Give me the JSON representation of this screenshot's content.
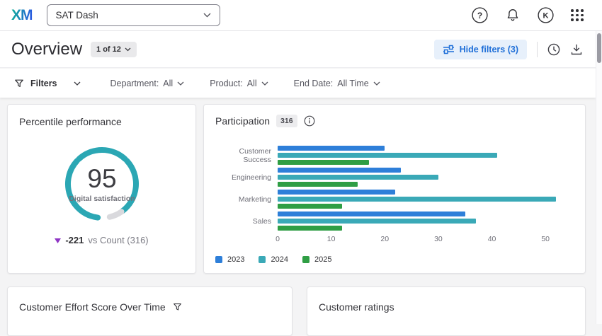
{
  "topbar": {
    "logo_text": "XM",
    "dashboard_name": "SAT Dash",
    "avatar_initial": "K"
  },
  "header": {
    "title": "Overview",
    "page_indicator": "1 of 12",
    "hide_filters": "Hide filters (3)"
  },
  "filter_bar": {
    "filters_label": "Filters",
    "filters": [
      {
        "label": "Department:",
        "value": "All"
      },
      {
        "label": "Product:",
        "value": "All"
      },
      {
        "label": "End Date:",
        "value": "All Time"
      }
    ]
  },
  "percentile_card": {
    "title": "Percentile performance",
    "score": "95",
    "score_label": "Digital satisfaction",
    "delta_value": "-221",
    "delta_context": "vs Count (316)"
  },
  "participation_card": {
    "title": "Participation",
    "badge": "316"
  },
  "bottom_cards": {
    "ces_title": "Customer Effort Score Over Time",
    "ratings_title": "Customer ratings"
  },
  "chart_data": {
    "type": "bar",
    "orientation": "horizontal",
    "title": "Participation",
    "categories": [
      "Customer Success",
      "Engineering",
      "Marketing",
      "Sales"
    ],
    "series": [
      {
        "name": "2023",
        "color": "#2e7fd9",
        "values": [
          20,
          23,
          22,
          35
        ]
      },
      {
        "name": "2024",
        "color": "#3aa9b7",
        "values": [
          41,
          30,
          52,
          37
        ]
      },
      {
        "name": "2025",
        "color": "#2f9e44",
        "values": [
          17,
          15,
          12,
          12
        ]
      }
    ],
    "xlim": [
      0,
      55
    ],
    "xticks": [
      0,
      10,
      20,
      30,
      40,
      50
    ],
    "legend_position": "bottom",
    "grid": false
  },
  "colors": {
    "accent_blue": "#1f6fd8",
    "gauge_teal": "#2ba7b4",
    "gauge_remainder": "#d9d9dd",
    "delta_down_purple": "#8f35c4"
  }
}
